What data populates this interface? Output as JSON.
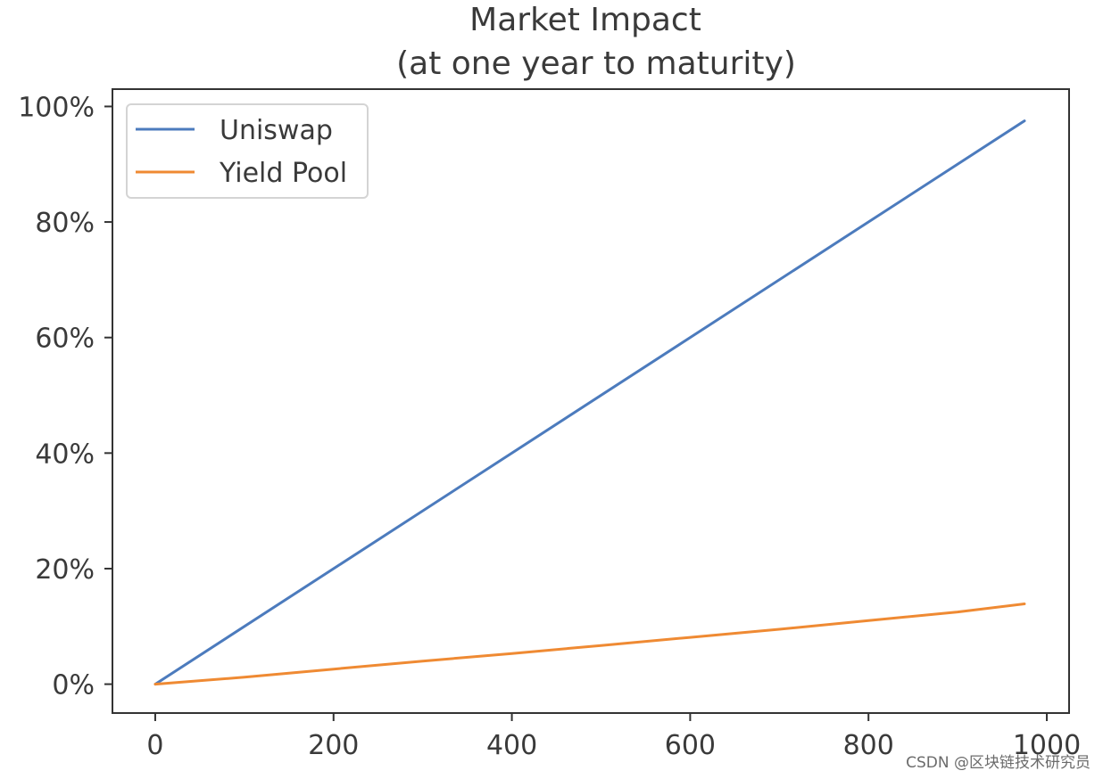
{
  "chart_data": {
    "type": "line",
    "title": "Market Impact\n(at one year to maturity)",
    "title_lines": [
      "Market Impact",
      "(at one year to maturity)"
    ],
    "xlabel": "",
    "ylabel": "",
    "xlim": [
      -48,
      1025
    ],
    "ylim": [
      -0.05,
      1.03
    ],
    "x_ticks": [
      0,
      200,
      400,
      600,
      800,
      1000
    ],
    "x_tick_labels": [
      "0",
      "200",
      "400",
      "600",
      "800",
      "1000"
    ],
    "y_ticks": [
      0,
      0.2,
      0.4,
      0.6,
      0.8,
      1.0
    ],
    "y_tick_labels": [
      "0%",
      "20%",
      "40%",
      "60%",
      "80%",
      "100%"
    ],
    "grid": false,
    "legend_position": "upper-left",
    "series": [
      {
        "name": "Uniswap",
        "color": "#4c7bbd",
        "points": [
          [
            0,
            0.0
          ],
          [
            975,
            0.975
          ]
        ]
      },
      {
        "name": "Yield Pool",
        "color": "#ef8a33",
        "points": [
          [
            0,
            0.0
          ],
          [
            100,
            0.012
          ],
          [
            200,
            0.026
          ],
          [
            300,
            0.04
          ],
          [
            400,
            0.053
          ],
          [
            500,
            0.067
          ],
          [
            600,
            0.081
          ],
          [
            700,
            0.095
          ],
          [
            800,
            0.11
          ],
          [
            900,
            0.125
          ],
          [
            975,
            0.139
          ]
        ]
      }
    ]
  },
  "watermark": "CSDN @区块链技术研究员"
}
